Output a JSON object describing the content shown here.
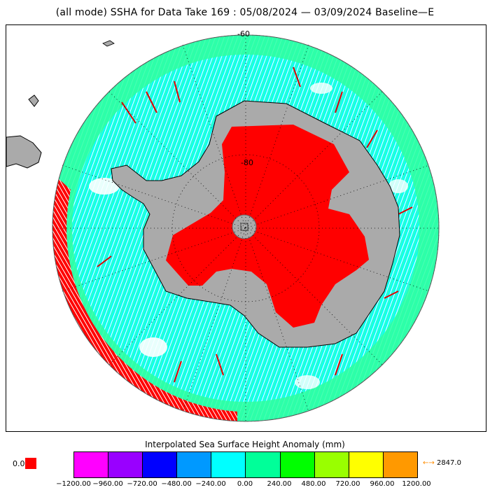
{
  "title": "(all mode) SSHA for Data Take 169 : 05/08/2024 — 03/09/2024 Baseline—E",
  "map": {
    "projection": "south-polar-stereographic",
    "lat_labels": [
      "-60",
      "-80"
    ],
    "colors": {
      "land_mask": "#aaaaaa",
      "dense_red": "#ff0000",
      "ocean_cyan": "#00ffff",
      "ocean_green": "#00ff9f",
      "grid": "#000000"
    }
  },
  "legend": {
    "title": "Interpolated Sea Surface Height Anomaly (mm)",
    "under_label": "0.0",
    "over_label": "2847.0",
    "over_arrow": "←→",
    "under_color": "#ff0000",
    "over_color": "#ff8c00",
    "bins": [
      "#ff00ff",
      "#9900ff",
      "#0000ff",
      "#0099ff",
      "#00ffff",
      "#00ff99",
      "#00ff00",
      "#99ff00",
      "#ffff00",
      "#ff9900"
    ],
    "ticks": [
      "−1200.00",
      "−960.00",
      "−720.00",
      "−480.00",
      "−240.00",
      "0.00",
      "240.00",
      "480.00",
      "720.00",
      "960.00",
      "1200.00"
    ]
  }
}
